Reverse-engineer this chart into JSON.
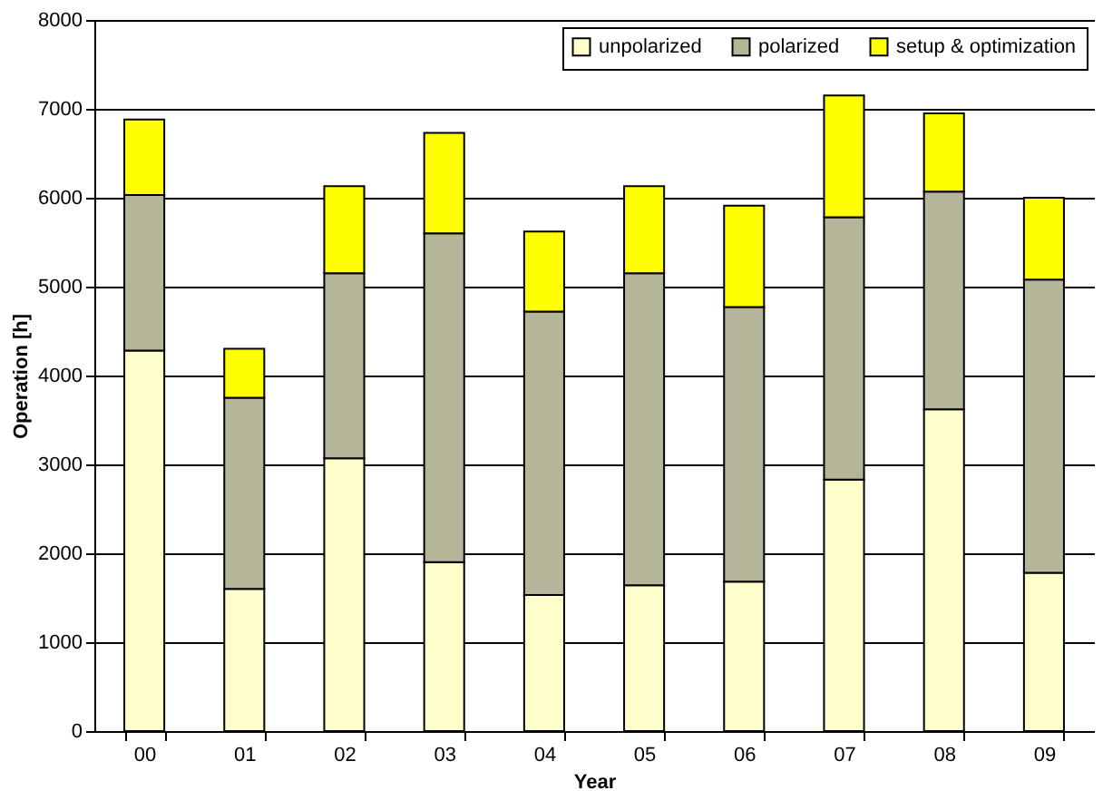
{
  "chart_data": {
    "type": "bar",
    "stacked": true,
    "xlabel": "Year",
    "ylabel": "Operation [h]",
    "categories": [
      "00",
      "01",
      "02",
      "03",
      "04",
      "05",
      "06",
      "07",
      "08",
      "09"
    ],
    "series": [
      {
        "name": "unpolarized",
        "color": "#ffffcc",
        "values": [
          4280,
          1600,
          3070,
          1900,
          1530,
          1640,
          1680,
          2830,
          3620,
          1780
        ]
      },
      {
        "name": "polarized",
        "color": "#b5b59a",
        "values": [
          1750,
          2150,
          2080,
          3700,
          3190,
          3510,
          3090,
          2950,
          2450,
          3300
        ]
      },
      {
        "name": "setup & optimization",
        "color": "#ffff00",
        "values": [
          850,
          550,
          980,
          1130,
          900,
          980,
          1140,
          1370,
          880,
          920
        ]
      }
    ],
    "ylim": [
      0,
      8000
    ],
    "yticks": [
      0,
      1000,
      2000,
      3000,
      4000,
      5000,
      6000,
      7000,
      8000
    ],
    "grid": "y",
    "legend": "top right"
  }
}
